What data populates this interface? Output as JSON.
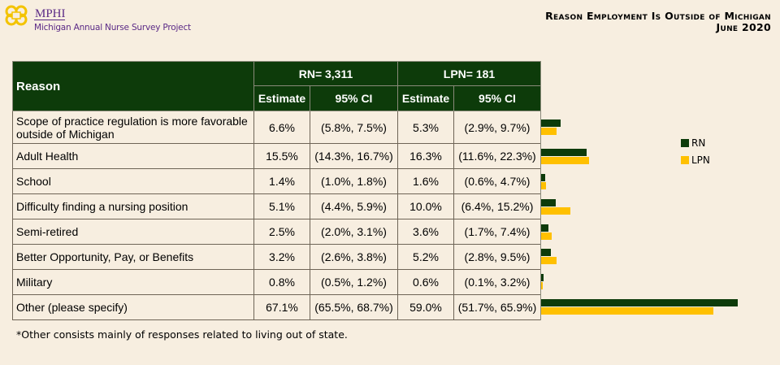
{
  "header": {
    "brand": "MPHI",
    "subtitle": "Michigan Annual Nurse Survey Project",
    "title": "Reason Employment Is Outside of Michigan",
    "date": "June 2020"
  },
  "colors": {
    "rn": "#0d3b0a",
    "lpn": "#ffc000",
    "background": "#f7eee0",
    "brand": "#5b2a86"
  },
  "table": {
    "reason_header": "Reason",
    "rn_group": "RN= 3,311",
    "lpn_group": "LPN= 181",
    "estimate_label": "Estimate",
    "ci_label": "95% CI",
    "rows": [
      {
        "reason": "Scope of practice regulation is more favorable outside of Michigan",
        "rn_est": "6.6%",
        "rn_ci": "(5.8%, 7.5%)",
        "lpn_est": "5.3%",
        "lpn_ci": "(2.9%, 9.7%)"
      },
      {
        "reason": "Adult Health",
        "rn_est": "15.5%",
        "rn_ci": "(14.3%, 16.7%)",
        "lpn_est": "16.3%",
        "lpn_ci": "(11.6%, 22.3%)"
      },
      {
        "reason": "School",
        "rn_est": "1.4%",
        "rn_ci": "(1.0%, 1.8%)",
        "lpn_est": "1.6%",
        "lpn_ci": "(0.6%, 4.7%)"
      },
      {
        "reason": "Difficulty finding a nursing position",
        "rn_est": "5.1%",
        "rn_ci": "(4.4%, 5.9%)",
        "lpn_est": "10.0%",
        "lpn_ci": "(6.4%, 15.2%)"
      },
      {
        "reason": "Semi-retired",
        "rn_est": "2.5%",
        "rn_ci": "(2.0%, 3.1%)",
        "lpn_est": "3.6%",
        "lpn_ci": "(1.7%, 7.4%)"
      },
      {
        "reason": "Better Opportunity, Pay, or Benefits",
        "rn_est": "3.2%",
        "rn_ci": "(2.6%, 3.8%)",
        "lpn_est": "5.2%",
        "lpn_ci": "(2.8%, 9.5%)"
      },
      {
        "reason": "Military",
        "rn_est": "0.8%",
        "rn_ci": "(0.5%, 1.2%)",
        "lpn_est": "0.6%",
        "lpn_ci": "(0.1%, 3.2%)"
      },
      {
        "reason": "Other (please specify)",
        "rn_est": "67.1%",
        "rn_ci": "(65.5%, 68.7%)",
        "lpn_est": "59.0%",
        "lpn_ci": "(51.7%, 65.9%)"
      }
    ]
  },
  "legend": {
    "rn": "RN",
    "lpn": "LPN"
  },
  "footnote": "*Other consists mainly of responses related to living out of state.",
  "chart_data": {
    "type": "bar",
    "orientation": "horizontal",
    "title": "Reason Employment Is Outside of Michigan",
    "subtitle": "June 2020",
    "categories": [
      "Scope of practice regulation is more favorable outside of Michigan",
      "Adult Health",
      "School",
      "Difficulty finding a nursing position",
      "Semi-retired",
      "Better Opportunity, Pay, or Benefits",
      "Military",
      "Other (please specify)"
    ],
    "series": [
      {
        "name": "RN",
        "color": "#0d3b0a",
        "values": [
          6.6,
          15.5,
          1.4,
          5.1,
          2.5,
          3.2,
          0.8,
          67.1
        ]
      },
      {
        "name": "LPN",
        "color": "#ffc000",
        "values": [
          5.3,
          16.3,
          1.6,
          10.0,
          3.6,
          5.2,
          0.6,
          59.0
        ]
      }
    ],
    "xlabel": "",
    "ylabel": "",
    "xlim": [
      0,
      70
    ],
    "grid": false,
    "legend_position": "right"
  }
}
